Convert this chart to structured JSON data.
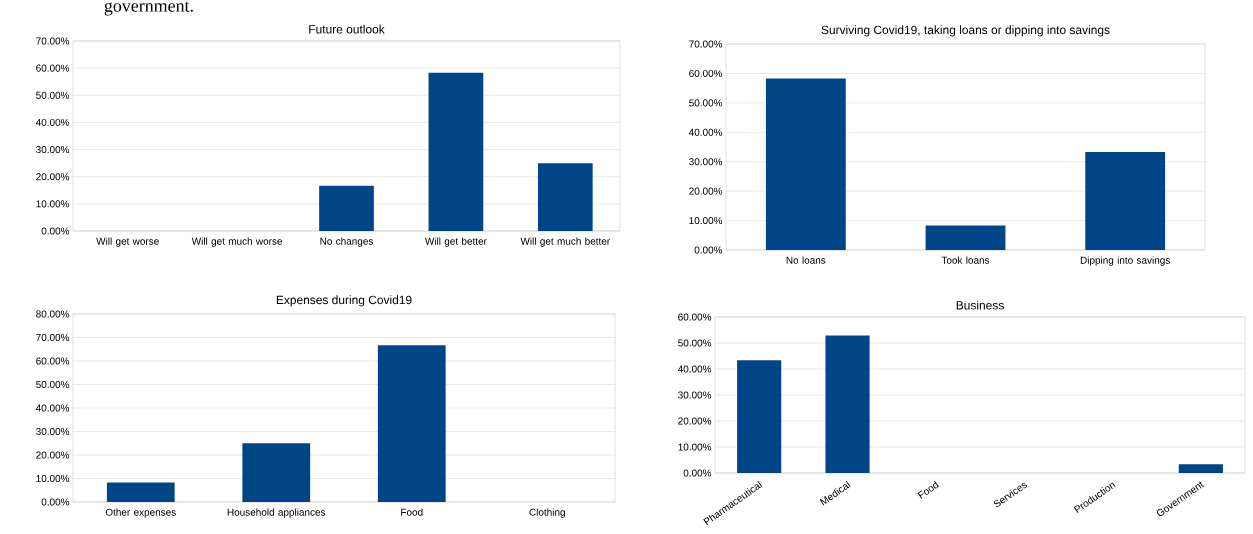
{
  "chart_data": [
    {
      "type": "bar",
      "title": "Future outlook",
      "annotations": [
        "government."
      ],
      "categories": [
        "Will get worse",
        "Will get much worse",
        "No changes",
        "Will get better",
        "Will get much better"
      ],
      "values": [
        0,
        0,
        16.7,
        58.3,
        25
      ],
      "color": "#004586",
      "ylim": [
        0,
        70
      ],
      "yticks": [
        {
          "value": 0,
          "label": "0.00%"
        },
        {
          "value": 10,
          "label": "10.00%"
        },
        {
          "value": 20,
          "label": "20.00%"
        },
        {
          "value": 30,
          "label": "30.00%"
        },
        {
          "value": 40,
          "label": "40.00%"
        },
        {
          "value": 50,
          "label": "50.00%"
        },
        {
          "value": 60,
          "label": "60.00%"
        },
        {
          "value": 70,
          "label": "70.00%"
        }
      ],
      "grid": "y"
    },
    {
      "type": "bar",
      "title": "Surviving Covid19, taking loans or dipping into savings",
      "categories": [
        "No loans",
        "Took loans",
        "Dipping into savings"
      ],
      "values": [
        58.3,
        8.3,
        33.3
      ],
      "color": "#004586",
      "ylim": [
        0,
        70
      ],
      "yticks": [
        {
          "value": 0,
          "label": "0.00%"
        },
        {
          "value": 10,
          "label": "10.00%"
        },
        {
          "value": 20,
          "label": "20.00%"
        },
        {
          "value": 30,
          "label": "30.00%"
        },
        {
          "value": 40,
          "label": "40.00%"
        },
        {
          "value": 50,
          "label": "50.00%"
        },
        {
          "value": 60,
          "label": "60.00%"
        },
        {
          "value": 70,
          "label": "70.00%"
        }
      ],
      "grid": "y"
    },
    {
      "type": "bar",
      "title": "Expenses during Covid19",
      "categories": [
        "Other expenses",
        "Household appliances",
        "Food",
        "Clothing"
      ],
      "values": [
        8.3,
        25,
        66.7,
        0
      ],
      "color": "#004586",
      "ylim": [
        0,
        80
      ],
      "yticks": [
        {
          "value": 0,
          "label": "0.00%"
        },
        {
          "value": 10,
          "label": "10.00%"
        },
        {
          "value": 20,
          "label": "20.00%"
        },
        {
          "value": 30,
          "label": "30.00%"
        },
        {
          "value": 40,
          "label": "40.00%"
        },
        {
          "value": 50,
          "label": "50.00%"
        },
        {
          "value": 60,
          "label": "60.00%"
        },
        {
          "value": 70,
          "label": "70.00%"
        },
        {
          "value": 80,
          "label": "80.00%"
        }
      ],
      "grid": "y"
    },
    {
      "type": "bar",
      "title": "Business",
      "categories": [
        "Pharmaceutical",
        "Medical",
        "Food",
        "Services",
        "Production",
        "Government"
      ],
      "values": [
        43.4,
        52.9,
        0,
        0,
        0,
        3.4
      ],
      "color": "#004586",
      "ylim": [
        0,
        60
      ],
      "yticks": [
        {
          "value": 0,
          "label": "0.00%"
        },
        {
          "value": 10,
          "label": "10.00%"
        },
        {
          "value": 20,
          "label": "20.00%"
        },
        {
          "value": 30,
          "label": "30.00%"
        },
        {
          "value": 40,
          "label": "40.00%"
        },
        {
          "value": 50,
          "label": "50.00%"
        },
        {
          "value": 60,
          "label": "60.00%"
        }
      ],
      "grid": "y"
    }
  ]
}
